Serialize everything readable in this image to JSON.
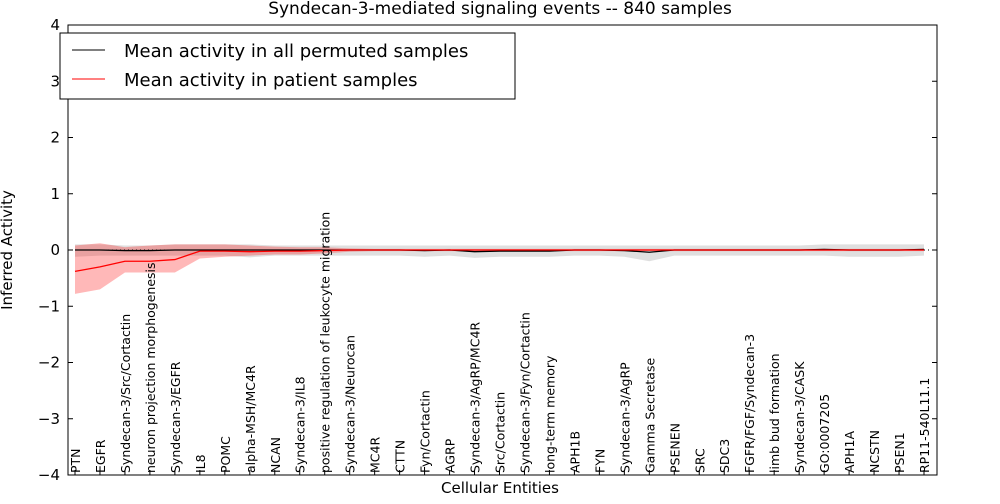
{
  "chart_data": {
    "type": "line",
    "title": "Syndecan-3-mediated signaling events -- 840 samples",
    "xlabel": "Cellular Entities",
    "ylabel": "Inferred Activity",
    "ylim": [
      -4,
      4
    ],
    "yticks": [
      "−4",
      "−3",
      "−2",
      "−1",
      "0",
      "1",
      "2",
      "3",
      "4"
    ],
    "legend_position": "top-left",
    "categories": [
      "PTN",
      "EGFR",
      "Syndecan-3/Src/Cortactin",
      "neuron projection morphogenesis",
      "Syndecan-3/EGFR",
      "IL8",
      "POMC",
      "alpha-MSH/MC4R",
      "NCAN",
      "Syndecan-3/IL8",
      "positive regulation of leukocyte migration",
      "Syndecan-3/Neurocan",
      "MC4R",
      "CTTN",
      "Fyn/Cortactin",
      "AGRP",
      "Syndecan-3/AgRP/MC4R",
      "Src/Cortactin",
      "Syndecan-3/Fyn/Cortactin",
      "long-term memory",
      "APH1B",
      "FYN",
      "Syndecan-3/AgRP",
      "Gamma Secretase",
      "PSENEN",
      "SRC",
      "SDC3",
      "FGFR/FGF/Syndecan-3",
      "limb bud formation",
      "Syndecan-3/CASK",
      "GO:0007205",
      "APH1A",
      "NCSTN",
      "PSEN1",
      "RP11-540L11.1"
    ],
    "series": [
      {
        "name": "Mean activity in all permuted samples",
        "color": "#000000",
        "values": [
          0,
          0,
          -0.01,
          -0.01,
          0,
          0,
          0,
          0,
          0,
          0,
          0,
          0,
          0,
          0,
          -0.01,
          0,
          -0.03,
          -0.02,
          -0.02,
          -0.02,
          0,
          0,
          -0.01,
          -0.04,
          0,
          0,
          0,
          0,
          0,
          0,
          0.01,
          0,
          0,
          0,
          0.01
        ],
        "lower": [
          -0.12,
          -0.1,
          -0.1,
          -0.1,
          -0.1,
          -0.1,
          -0.1,
          -0.13,
          -0.1,
          -0.1,
          -0.1,
          -0.1,
          -0.1,
          -0.1,
          -0.12,
          -0.1,
          -0.14,
          -0.12,
          -0.12,
          -0.12,
          -0.1,
          -0.1,
          -0.12,
          -0.2,
          -0.1,
          -0.1,
          -0.1,
          -0.1,
          -0.1,
          -0.1,
          -0.1,
          -0.12,
          -0.12,
          -0.12,
          -0.1
        ],
        "upper": [
          0.1,
          0.1,
          0.08,
          0.08,
          0.1,
          0.1,
          0.1,
          0.1,
          0.08,
          0.08,
          0.08,
          0.08,
          0.08,
          0.08,
          0.08,
          0.08,
          0.08,
          0.08,
          0.08,
          0.08,
          0.08,
          0.08,
          0.08,
          0.08,
          0.08,
          0.08,
          0.08,
          0.08,
          0.08,
          0.08,
          0.1,
          0.1,
          0.1,
          0.1,
          0.1
        ]
      },
      {
        "name": "Mean activity in patient samples",
        "color": "#ff0000",
        "values": [
          -0.38,
          -0.3,
          -0.2,
          -0.2,
          -0.17,
          -0.02,
          -0.02,
          -0.03,
          -0.02,
          -0.02,
          -0.01,
          0,
          0,
          0,
          0,
          0,
          0,
          0,
          0,
          0,
          0,
          0,
          0,
          0,
          0,
          0,
          0,
          0,
          0,
          0,
          0,
          0,
          0,
          0,
          0
        ],
        "lower": [
          -0.78,
          -0.7,
          -0.4,
          -0.4,
          -0.4,
          -0.15,
          -0.12,
          -0.1,
          -0.08,
          -0.08,
          -0.06,
          -0.03,
          -0.02,
          -0.02,
          -0.02,
          -0.02,
          -0.02,
          -0.02,
          -0.02,
          -0.02,
          -0.02,
          -0.02,
          -0.02,
          -0.02,
          -0.02,
          -0.02,
          -0.02,
          -0.02,
          -0.02,
          -0.02,
          -0.02,
          -0.02,
          -0.02,
          -0.02,
          -0.02
        ],
        "upper": [
          0.08,
          0.12,
          0.05,
          0.08,
          0.1,
          0.1,
          0.1,
          0.08,
          0.06,
          0.05,
          0.05,
          0.03,
          0.02,
          0.02,
          0.02,
          0.02,
          0.02,
          0.02,
          0.02,
          0.02,
          0.02,
          0.02,
          0.02,
          0.02,
          0.02,
          0.02,
          0.02,
          0.02,
          0.02,
          0.02,
          0.02,
          0.02,
          0.02,
          0.02,
          0.02
        ]
      }
    ]
  }
}
